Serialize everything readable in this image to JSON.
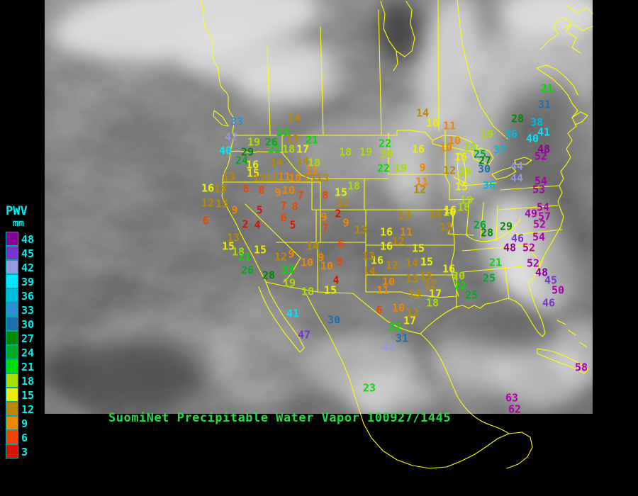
{
  "legend": {
    "title": "PWV",
    "unit": "mm",
    "text_color": "#00eeee",
    "scale": [
      {
        "value": 48,
        "color": "#880099"
      },
      {
        "value": 45,
        "color": "#7733cc"
      },
      {
        "value": 42,
        "color": "#9898e0"
      },
      {
        "value": 39,
        "color": "#00e6ff"
      },
      {
        "value": 36,
        "color": "#00bbdd"
      },
      {
        "value": 33,
        "color": "#2e8fd5"
      },
      {
        "value": 30,
        "color": "#1d6fae"
      },
      {
        "value": 27,
        "color": "#008800"
      },
      {
        "value": 24,
        "color": "#00aa22"
      },
      {
        "value": 21,
        "color": "#00dd00"
      },
      {
        "value": 18,
        "color": "#aadd00"
      },
      {
        "value": 15,
        "color": "#eeee00"
      },
      {
        "value": 12,
        "color": "#bb8800"
      },
      {
        "value": 9,
        "color": "#ee8800"
      },
      {
        "value": 6,
        "color": "#ee4400"
      },
      {
        "value": 3,
        "color": "#dd1100"
      }
    ]
  },
  "footer": {
    "text": "SuomiNet Precipitable Water Vapor 100927/1445",
    "color": "#22dd44"
  },
  "map": {
    "outline_color": "#ffff00",
    "high_value_color": "#aa00aa"
  },
  "stations": [
    [
      33,
      334,
      172
    ],
    [
      42,
      326,
      194
    ],
    [
      40,
      318,
      213
    ],
    [
      23,
      399,
      187
    ],
    [
      26,
      383,
      201
    ],
    [
      19,
      358,
      201
    ],
    [
      13,
      413,
      197
    ],
    [
      21,
      440,
      198
    ],
    [
      22,
      387,
      211
    ],
    [
      18,
      407,
      211
    ],
    [
      17,
      427,
      211
    ],
    [
      29,
      349,
      215
    ],
    [
      24,
      341,
      227
    ],
    [
      16,
      356,
      233
    ],
    [
      15,
      357,
      245
    ],
    [
      14,
      390,
      230
    ],
    [
      14,
      427,
      228
    ],
    [
      18,
      443,
      230
    ],
    [
      14,
      415,
      167
    ],
    [
      14,
      596,
      160
    ],
    [
      13,
      323,
      250
    ],
    [
      12,
      366,
      252
    ],
    [
      12,
      383,
      252
    ],
    [
      11,
      401,
      250
    ],
    [
      10,
      416,
      252
    ],
    [
      13,
      436,
      252
    ],
    [
      11,
      440,
      241
    ],
    [
      16,
      293,
      266
    ],
    [
      13,
      311,
      267
    ],
    [
      6,
      347,
      267
    ],
    [
      8,
      369,
      269
    ],
    [
      9,
      392,
      272
    ],
    [
      10,
      407,
      269
    ],
    [
      7,
      424,
      276
    ],
    [
      12,
      293,
      287
    ],
    [
      13,
      313,
      288
    ],
    [
      9,
      331,
      297
    ],
    [
      7,
      400,
      291
    ],
    [
      8,
      416,
      292
    ],
    [
      5,
      366,
      297
    ],
    [
      6,
      290,
      312
    ],
    [
      2,
      346,
      317
    ],
    [
      4,
      363,
      318
    ],
    [
      6,
      400,
      308
    ],
    [
      5,
      413,
      318
    ],
    [
      13,
      455,
      252
    ],
    [
      8,
      459,
      276
    ],
    [
      15,
      481,
      272
    ],
    [
      12,
      484,
      287
    ],
    [
      2,
      477,
      302
    ],
    [
      9,
      457,
      307
    ],
    [
      9,
      488,
      315
    ],
    [
      7,
      459,
      322
    ],
    [
      18,
      499,
      263
    ],
    [
      13,
      509,
      325
    ],
    [
      13,
      329,
      336
    ],
    [
      15,
      322,
      348
    ],
    [
      18,
      336,
      356
    ],
    [
      15,
      367,
      353
    ],
    [
      21,
      345,
      363
    ],
    [
      12,
      396,
      363
    ],
    [
      9,
      411,
      359
    ],
    [
      26,
      349,
      382
    ],
    [
      28,
      379,
      389
    ],
    [
      23,
      406,
      381
    ],
    [
      10,
      433,
      371
    ],
    [
      9,
      453,
      364
    ],
    [
      10,
      461,
      376
    ],
    [
      8,
      479,
      370
    ],
    [
      19,
      408,
      400
    ],
    [
      18,
      434,
      412
    ],
    [
      15,
      466,
      410
    ],
    [
      4,
      474,
      396
    ],
    [
      14,
      441,
      348
    ],
    [
      6,
      481,
      345
    ],
    [
      18,
      487,
      215
    ],
    [
      19,
      516,
      215
    ],
    [
      20,
      545,
      218
    ],
    [
      22,
      543,
      203
    ],
    [
      16,
      590,
      211
    ],
    [
      22,
      541,
      238
    ],
    [
      19,
      565,
      238
    ],
    [
      9,
      596,
      237
    ],
    [
      16,
      610,
      174
    ],
    [
      11,
      634,
      178
    ],
    [
      12,
      634,
      241
    ],
    [
      10,
      641,
      199
    ],
    [
      10,
      629,
      209
    ],
    [
      18,
      663,
      208
    ],
    [
      16,
      650,
      222
    ],
    [
      25,
      677,
      218
    ],
    [
      27,
      684,
      227
    ],
    [
      30,
      683,
      239
    ],
    [
      19,
      687,
      190
    ],
    [
      36,
      721,
      190
    ],
    [
      37,
      705,
      212
    ],
    [
      40,
      751,
      196
    ],
    [
      41,
      767,
      187
    ],
    [
      38,
      757,
      173
    ],
    [
      28,
      730,
      168
    ],
    [
      21,
      772,
      125
    ],
    [
      31,
      768,
      148
    ],
    [
      48,
      767,
      211
    ],
    [
      52,
      763,
      221
    ],
    [
      44,
      729,
      235
    ],
    [
      44,
      729,
      252
    ],
    [
      36,
      690,
      262
    ],
    [
      15,
      651,
      264
    ],
    [
      19,
      656,
      243
    ],
    [
      12,
      592,
      268
    ],
    [
      11,
      595,
      257
    ],
    [
      54,
      763,
      256
    ],
    [
      53,
      760,
      268
    ],
    [
      19,
      658,
      283
    ],
    [
      18,
      654,
      293
    ],
    [
      16,
      634,
      300
    ],
    [
      13,
      571,
      305
    ],
    [
      14,
      614,
      303
    ],
    [
      16,
      635,
      297
    ],
    [
      13,
      629,
      321
    ],
    [
      26,
      677,
      318
    ],
    [
      29,
      714,
      320
    ],
    [
      28,
      687,
      329
    ],
    [
      21,
      699,
      371
    ],
    [
      16,
      633,
      380
    ],
    [
      20,
      647,
      390
    ],
    [
      25,
      690,
      393
    ],
    [
      22,
      649,
      404
    ],
    [
      25,
      665,
      417
    ],
    [
      54,
      766,
      293
    ],
    [
      49,
      749,
      302
    ],
    [
      57,
      768,
      306
    ],
    [
      52,
      761,
      317
    ],
    [
      46,
      730,
      337
    ],
    [
      54,
      760,
      335
    ],
    [
      48,
      719,
      350
    ],
    [
      52,
      746,
      350
    ],
    [
      52,
      752,
      372
    ],
    [
      48,
      764,
      385
    ],
    [
      45,
      777,
      396
    ],
    [
      50,
      787,
      410
    ],
    [
      46,
      774,
      428
    ],
    [
      58,
      820,
      519
    ],
    [
      63,
      722,
      562
    ],
    [
      62,
      726,
      578
    ],
    [
      16,
      545,
      328
    ],
    [
      11,
      573,
      328
    ],
    [
      12,
      562,
      341
    ],
    [
      15,
      590,
      351
    ],
    [
      16,
      545,
      348
    ],
    [
      16,
      532,
      368
    ],
    [
      12,
      553,
      375
    ],
    [
      14,
      581,
      372
    ],
    [
      15,
      602,
      370
    ],
    [
      13,
      520,
      362
    ],
    [
      14,
      521,
      383
    ],
    [
      10,
      548,
      398
    ],
    [
      13,
      581,
      394
    ],
    [
      13,
      601,
      390
    ],
    [
      12,
      607,
      402
    ],
    [
      11,
      540,
      410
    ],
    [
      13,
      585,
      415
    ],
    [
      17,
      614,
      415
    ],
    [
      18,
      610,
      428
    ],
    [
      6,
      535,
      438
    ],
    [
      10,
      562,
      435
    ],
    [
      12,
      582,
      442
    ],
    [
      17,
      578,
      453
    ],
    [
      22,
      557,
      462
    ],
    [
      31,
      567,
      478
    ],
    [
      44,
      548,
      491
    ],
    [
      41,
      413,
      443
    ],
    [
      30,
      471,
      452
    ],
    [
      47,
      429,
      473
    ],
    [
      23,
      521,
      548
    ]
  ]
}
